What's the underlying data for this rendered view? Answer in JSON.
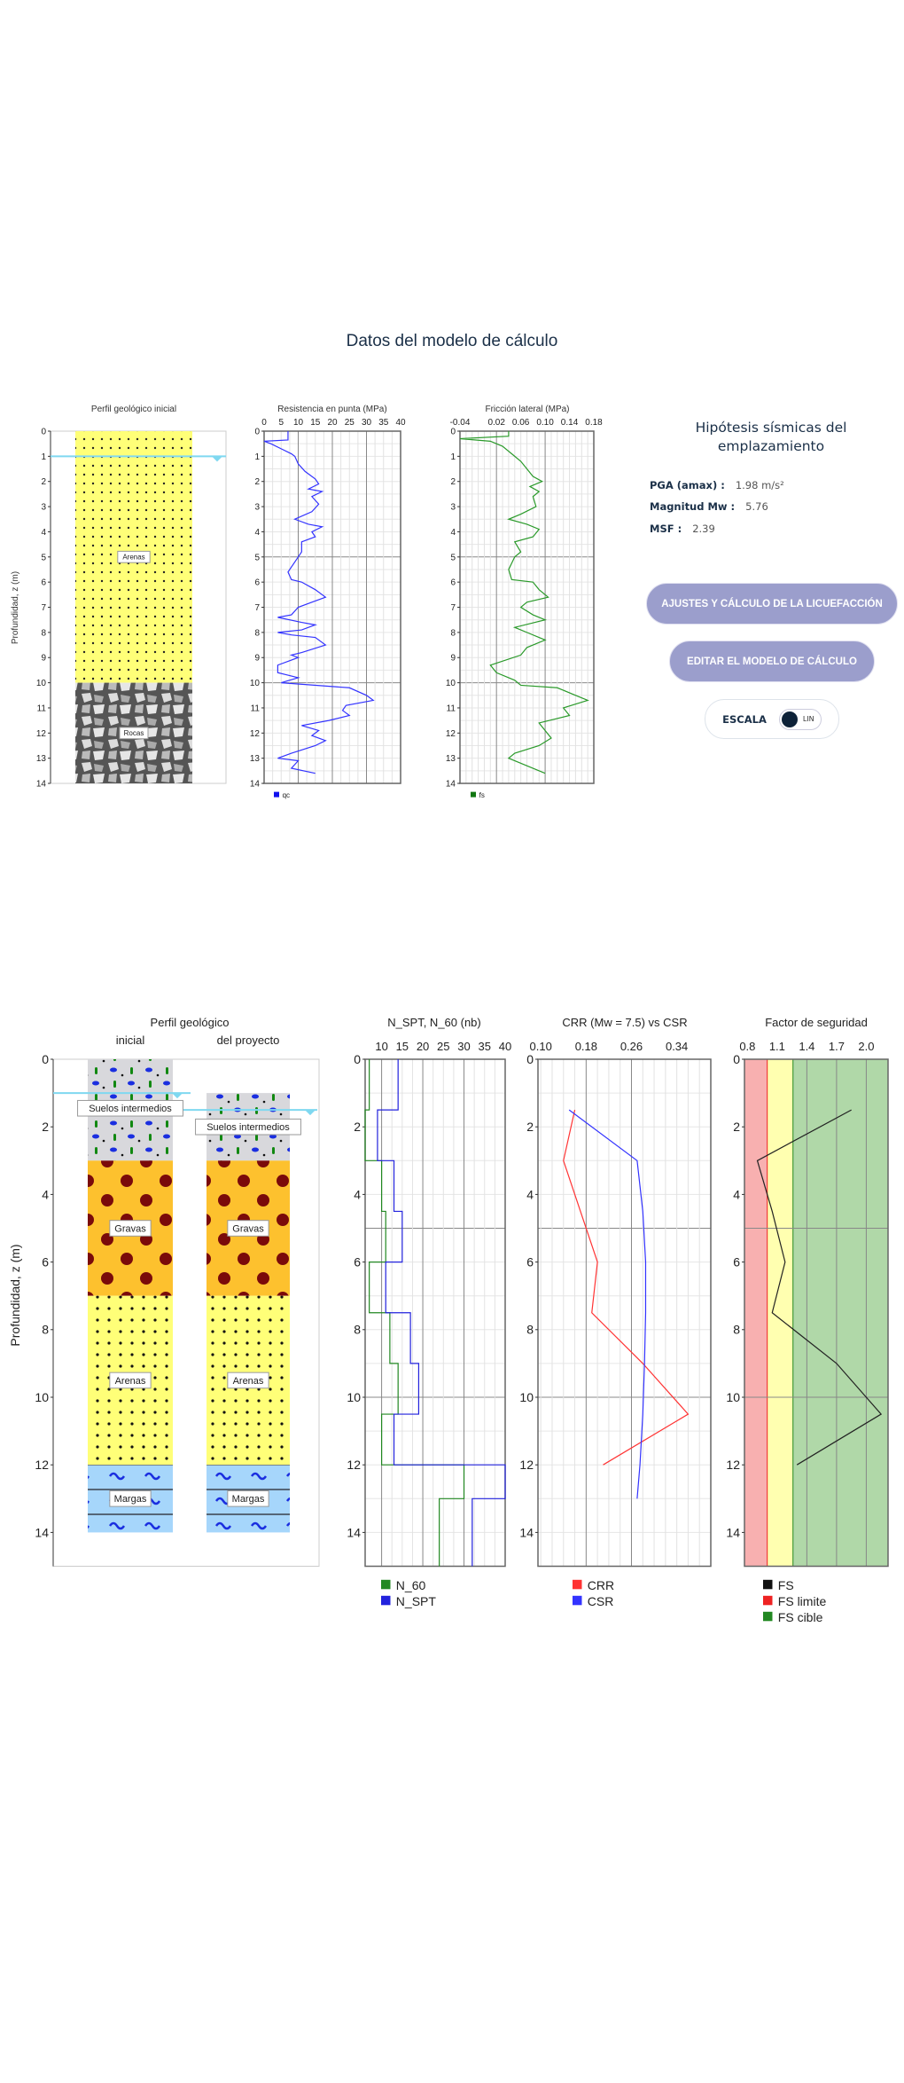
{
  "header": {
    "title": "Datos del modelo de cálculo"
  },
  "seismic": {
    "title": "Hipótesis sísmicas del emplazamiento",
    "pga_label": "PGA (amax) :",
    "pga_value": "1.98 m/s²",
    "mw_label": "Magnitud Mw :",
    "mw_value": "5.76",
    "msf_label": "MSF :",
    "msf_value": "2.39"
  },
  "buttons": {
    "liquefaction": "AJUSTES Y CÁLCULO DE LA LICUEFACCIÓN",
    "edit_model": "EDITAR EL MODELO DE CÁLCULO"
  },
  "scale": {
    "label": "ESCALA",
    "value": "LIN"
  },
  "colors": {
    "accent": "#9b9ecc",
    "navy": "#1b3048",
    "qc": "#3333ff",
    "fs": "#2a9a2a",
    "water": "#7fd8f0"
  },
  "chart_data": [
    {
      "type": "table",
      "id": "profile_initial",
      "title": "Perfil geológico inicial",
      "ylabel": "Profundidad, z (m)",
      "ylim": [
        0,
        14
      ],
      "yticks": [
        0,
        1,
        2,
        3,
        4,
        5,
        6,
        7,
        8,
        9,
        10,
        11,
        12,
        13,
        14
      ],
      "water_table": 1,
      "layers": [
        {
          "name": "Arenas",
          "top": 0,
          "bottom": 10,
          "kind": "sand"
        },
        {
          "name": "Rocas",
          "top": 10,
          "bottom": 14,
          "kind": "rock"
        }
      ]
    },
    {
      "type": "line",
      "id": "qc",
      "title": "Resistencia en punta (MPa)",
      "xlim": [
        0,
        40
      ],
      "xticks": [
        0,
        5,
        10,
        15,
        20,
        25,
        30,
        35,
        40
      ],
      "ylim": [
        0,
        14
      ],
      "legend": "qc",
      "points": [
        [
          7,
          0
        ],
        [
          7,
          0.35
        ],
        [
          0,
          0.4
        ],
        [
          2,
          0.5
        ],
        [
          5,
          0.7
        ],
        [
          8,
          0.9
        ],
        [
          9,
          1.0
        ],
        [
          10,
          1.3
        ],
        [
          12,
          1.6
        ],
        [
          15,
          1.9
        ],
        [
          16,
          2.1
        ],
        [
          13,
          2.3
        ],
        [
          17,
          2.4
        ],
        [
          14,
          2.6
        ],
        [
          16,
          2.9
        ],
        [
          14,
          3.2
        ],
        [
          9,
          3.5
        ],
        [
          13,
          3.7
        ],
        [
          17,
          3.8
        ],
        [
          14,
          4.0
        ],
        [
          15,
          4.2
        ],
        [
          11,
          4.4
        ],
        [
          11,
          4.8
        ],
        [
          10,
          5.0
        ],
        [
          7,
          5.6
        ],
        [
          8,
          5.9
        ],
        [
          11,
          6.0
        ],
        [
          15,
          6.3
        ],
        [
          18,
          6.6
        ],
        [
          14,
          6.8
        ],
        [
          10,
          7.0
        ],
        [
          8,
          7.3
        ],
        [
          4,
          7.4
        ],
        [
          11,
          7.6
        ],
        [
          15,
          7.7
        ],
        [
          11,
          7.9
        ],
        [
          4,
          8.0
        ],
        [
          8,
          8.1
        ],
        [
          15,
          8.2
        ],
        [
          18,
          8.5
        ],
        [
          11,
          8.8
        ],
        [
          8,
          8.9
        ],
        [
          10,
          9.0
        ],
        [
          4,
          9.3
        ],
        [
          4,
          9.6
        ],
        [
          7,
          9.7
        ],
        [
          10,
          9.8
        ],
        [
          5,
          10.0
        ],
        [
          25,
          10.2
        ],
        [
          30,
          10.5
        ],
        [
          32,
          10.7
        ],
        [
          24,
          10.9
        ],
        [
          23,
          11.1
        ],
        [
          25,
          11.3
        ],
        [
          19,
          11.5
        ],
        [
          11,
          11.7
        ],
        [
          16,
          11.9
        ],
        [
          14,
          12.1
        ],
        [
          18,
          12.3
        ],
        [
          15,
          12.5
        ],
        [
          8,
          12.8
        ],
        [
          4,
          13.0
        ],
        [
          10,
          13.1
        ],
        [
          8,
          13.4
        ],
        [
          15,
          13.6
        ]
      ]
    },
    {
      "type": "line",
      "id": "fs",
      "title": "Fricción lateral (MPa)",
      "xlim": [
        -0.04,
        0.18
      ],
      "xticks": [
        "-0.04",
        "0.02",
        "0.06",
        "0.10",
        "0.14",
        "0.18"
      ],
      "ylim": [
        0,
        14
      ],
      "legend": "fs",
      "points": [
        [
          0.04,
          0
        ],
        [
          0.04,
          0.2
        ],
        [
          -0.04,
          0.3
        ],
        [
          0.01,
          0.4
        ],
        [
          0.03,
          0.6
        ],
        [
          0.045,
          0.9
        ],
        [
          0.06,
          1.2
        ],
        [
          0.07,
          1.5
        ],
        [
          0.08,
          1.8
        ],
        [
          0.095,
          2.0
        ],
        [
          0.075,
          2.2
        ],
        [
          0.09,
          2.4
        ],
        [
          0.08,
          2.6
        ],
        [
          0.085,
          3.0
        ],
        [
          0.06,
          3.3
        ],
        [
          0.04,
          3.5
        ],
        [
          0.07,
          3.7
        ],
        [
          0.09,
          3.9
        ],
        [
          0.08,
          4.2
        ],
        [
          0.05,
          4.4
        ],
        [
          0.06,
          4.8
        ],
        [
          0.05,
          5.0
        ],
        [
          0.04,
          5.5
        ],
        [
          0.045,
          5.9
        ],
        [
          0.08,
          6.0
        ],
        [
          0.09,
          6.3
        ],
        [
          0.105,
          6.6
        ],
        [
          0.07,
          6.8
        ],
        [
          0.06,
          7.0
        ],
        [
          0.08,
          7.3
        ],
        [
          0.1,
          7.5
        ],
        [
          0.05,
          7.8
        ],
        [
          0.07,
          8.0
        ],
        [
          0.1,
          8.3
        ],
        [
          0.07,
          8.6
        ],
        [
          0.06,
          8.9
        ],
        [
          0.01,
          9.3
        ],
        [
          0.02,
          9.6
        ],
        [
          0.05,
          9.9
        ],
        [
          0.06,
          10.1
        ],
        [
          0.12,
          10.2
        ],
        [
          0.15,
          10.5
        ],
        [
          0.17,
          10.7
        ],
        [
          0.13,
          11.0
        ],
        [
          0.14,
          11.3
        ],
        [
          0.09,
          11.6
        ],
        [
          0.1,
          11.9
        ],
        [
          0.11,
          12.2
        ],
        [
          0.09,
          12.5
        ],
        [
          0.05,
          12.8
        ],
        [
          0.04,
          13.0
        ],
        [
          0.07,
          13.3
        ],
        [
          0.1,
          13.6
        ]
      ]
    },
    {
      "type": "table",
      "id": "profile_compare",
      "title": "Perfil geológico",
      "col_labels": [
        "inicial",
        "del proyecto"
      ],
      "ylabel": "Profundidad, z (m)",
      "ylim": [
        0,
        15
      ],
      "yticks": [
        0,
        2,
        4,
        6,
        8,
        10,
        12,
        14
      ],
      "water_tables": [
        1,
        1.5
      ],
      "project_top": 1,
      "layers": [
        {
          "name": "Suelos intermedios",
          "top": 0,
          "bottom": 3,
          "kind": "silt"
        },
        {
          "name": "Gravas",
          "top": 3,
          "bottom": 7,
          "kind": "gravel"
        },
        {
          "name": "Arenas",
          "top": 7,
          "bottom": 12,
          "kind": "sand"
        },
        {
          "name": "Margas",
          "top": 12,
          "bottom": 14,
          "kind": "marl"
        }
      ]
    },
    {
      "type": "line",
      "id": "spt",
      "title": "N_SPT, N_60 (nb)",
      "xlim": [
        6,
        40
      ],
      "xticks": [
        10,
        15,
        20,
        25,
        30,
        35,
        40
      ],
      "ylim": [
        0,
        15
      ],
      "yticks": [
        0,
        2,
        4,
        6,
        8,
        10,
        12,
        14
      ],
      "step": true,
      "series": [
        {
          "name": "N_60",
          "color": "#228822",
          "layers": [
            [
              0,
              1.5,
              7
            ],
            [
              1.5,
              3,
              6
            ],
            [
              3,
              4.5,
              10
            ],
            [
              4.5,
              6,
              11
            ],
            [
              6,
              7.5,
              7
            ],
            [
              7.5,
              9,
              12
            ],
            [
              9,
              10.5,
              14
            ],
            [
              10.5,
              12,
              10
            ],
            [
              12,
              13,
              30
            ],
            [
              13,
              15,
              24
            ]
          ]
        },
        {
          "name": "N_SPT",
          "color": "#2222dd",
          "layers": [
            [
              0,
              1.5,
              14
            ],
            [
              1.5,
              3,
              9
            ],
            [
              3,
              4.5,
              13
            ],
            [
              4.5,
              6,
              15
            ],
            [
              6,
              7.5,
              11
            ],
            [
              7.5,
              9,
              17
            ],
            [
              9,
              10.5,
              19
            ],
            [
              10.5,
              12,
              13
            ],
            [
              12,
              13,
              40
            ],
            [
              13,
              15,
              32
            ]
          ]
        }
      ]
    },
    {
      "type": "line",
      "id": "crr",
      "title": "CRR (Mw = 7.5) vs CSR",
      "xlim": [
        0.095,
        0.4
      ],
      "xticks": [
        "0.10",
        "0.18",
        "0.26",
        "0.34"
      ],
      "ylim": [
        0,
        15
      ],
      "yticks": [
        0,
        2,
        4,
        6,
        8,
        10,
        12,
        14
      ],
      "series": [
        {
          "name": "CRR",
          "color": "#ff3333",
          "points": [
            [
              0.16,
              1.5
            ],
            [
              0.14,
              3
            ],
            [
              0.2,
              6
            ],
            [
              0.19,
              7.5
            ],
            [
              0.28,
              9
            ],
            [
              0.36,
              10.5
            ],
            [
              0.21,
              12
            ]
          ]
        },
        {
          "name": "CSR",
          "color": "#3333ff",
          "points": [
            [
              0.15,
              1.5
            ],
            [
              0.27,
              3
            ],
            [
              0.28,
              4.5
            ],
            [
              0.285,
              6
            ],
            [
              0.285,
              7.5
            ],
            [
              0.283,
              9
            ],
            [
              0.28,
              10.5
            ],
            [
              0.275,
              12
            ],
            [
              0.27,
              13
            ]
          ]
        }
      ]
    },
    {
      "type": "line",
      "id": "fsafety",
      "title": "Factor de seguridad",
      "xlim": [
        0.77,
        2.22
      ],
      "xticks": [
        "0.8",
        "1.1",
        "1.4",
        "1.7",
        "2.0"
      ],
      "ylim": [
        0,
        15
      ],
      "yticks": [
        0,
        2,
        4,
        6,
        8,
        10,
        12,
        14
      ],
      "zones": [
        {
          "name": "FS limite",
          "from": 0.77,
          "to": 1.0,
          "color": "#f8b0b0"
        },
        {
          "name": "",
          "from": 1.0,
          "to": 1.26,
          "color": "#ffffb0"
        },
        {
          "name": "FS cible",
          "from": 1.26,
          "to": 2.22,
          "color": "#b0d8a8"
        }
      ],
      "series": [
        {
          "name": "FS",
          "color": "#222222",
          "points": [
            [
              1.85,
              1.5
            ],
            [
              0.9,
              3
            ],
            [
              1.05,
              4.5
            ],
            [
              1.18,
              6
            ],
            [
              1.05,
              7.5
            ],
            [
              1.7,
              9
            ],
            [
              2.15,
              10.5
            ],
            [
              1.3,
              12
            ]
          ]
        }
      ],
      "legend": [
        {
          "name": "FS",
          "color": "#111111"
        },
        {
          "name": "FS limite",
          "color": "#ee2222"
        },
        {
          "name": "FS cible",
          "color": "#228822"
        }
      ]
    }
  ]
}
